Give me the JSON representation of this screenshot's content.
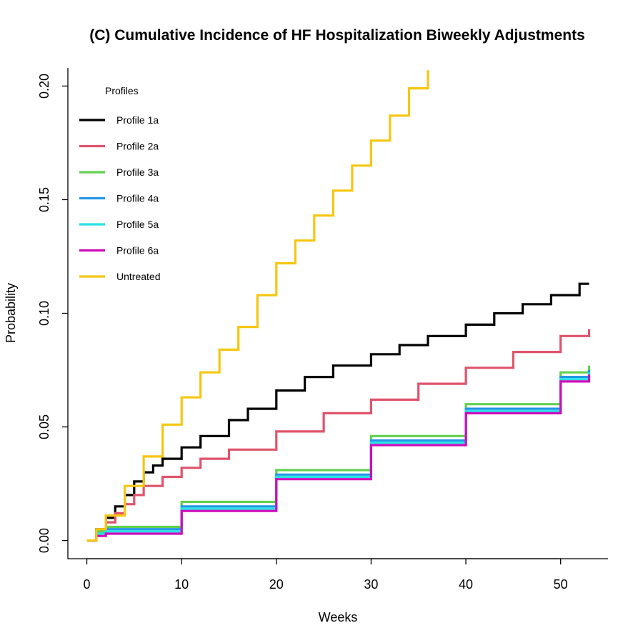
{
  "chart_data": {
    "type": "line",
    "step": true,
    "title": "(C) Cumulative Incidence of HF Hospitalization Biweekly Adjustments",
    "xlabel": "Weeks",
    "ylabel": "Probability",
    "xlim": [
      -2,
      55
    ],
    "ylim": [
      -0.008,
      0.208
    ],
    "xticks": [
      0,
      10,
      20,
      30,
      40,
      50
    ],
    "xtick_labels": [
      "0",
      "10",
      "20",
      "30",
      "40",
      "50"
    ],
    "yticks": [
      0.0,
      0.05,
      0.1,
      0.15,
      0.2
    ],
    "ytick_labels": [
      "0.00",
      "0.05",
      "0.10",
      "0.15",
      "0.20"
    ],
    "grid": false,
    "legend_title": "Profiles",
    "legend_position": "top-left",
    "series": [
      {
        "name": "Profile 1a",
        "color": "#000000",
        "x": [
          0,
          1,
          2,
          3,
          4,
          5,
          6,
          7,
          8,
          10,
          12,
          15,
          17,
          20,
          23,
          26,
          30,
          33,
          36,
          40,
          43,
          46,
          49,
          52,
          53
        ],
        "y": [
          0.0,
          0.005,
          0.01,
          0.015,
          0.02,
          0.026,
          0.03,
          0.033,
          0.036,
          0.041,
          0.046,
          0.053,
          0.058,
          0.066,
          0.072,
          0.077,
          0.082,
          0.086,
          0.09,
          0.095,
          0.1,
          0.104,
          0.108,
          0.113,
          0.113
        ]
      },
      {
        "name": "Profile 2a",
        "color": "#DF536B",
        "x": [
          0,
          1,
          2,
          3,
          4,
          5,
          6,
          8,
          10,
          12,
          15,
          20,
          25,
          30,
          35,
          40,
          45,
          50,
          53
        ],
        "y": [
          0.0,
          0.004,
          0.008,
          0.012,
          0.016,
          0.02,
          0.024,
          0.028,
          0.032,
          0.036,
          0.04,
          0.048,
          0.056,
          0.062,
          0.069,
          0.076,
          0.083,
          0.09,
          0.093
        ]
      },
      {
        "name": "Profile 3a",
        "color": "#61D04F",
        "x": [
          0,
          1,
          2,
          10,
          20,
          30,
          40,
          50,
          53
        ],
        "y": [
          0.0,
          0.004,
          0.006,
          0.017,
          0.031,
          0.046,
          0.06,
          0.074,
          0.077
        ]
      },
      {
        "name": "Profile 4a",
        "color": "#2297E6",
        "x": [
          0,
          1,
          2,
          10,
          20,
          30,
          40,
          50,
          53
        ],
        "y": [
          0.0,
          0.003,
          0.005,
          0.015,
          0.029,
          0.044,
          0.058,
          0.072,
          0.075
        ]
      },
      {
        "name": "Profile 5a",
        "color": "#28E2E5",
        "x": [
          0,
          1,
          2,
          10,
          20,
          30,
          40,
          50,
          53
        ],
        "y": [
          0.0,
          0.003,
          0.004,
          0.014,
          0.028,
          0.043,
          0.057,
          0.071,
          0.074
        ]
      },
      {
        "name": "Profile 6a",
        "color": "#CD0BBC",
        "x": [
          0,
          1,
          2,
          10,
          20,
          30,
          40,
          50,
          53
        ],
        "y": [
          0.0,
          0.002,
          0.003,
          0.013,
          0.027,
          0.042,
          0.056,
          0.07,
          0.073
        ]
      },
      {
        "name": "Untreated",
        "color": "#F5C710",
        "x": [
          0,
          1,
          2,
          4,
          6,
          8,
          10,
          12,
          14,
          16,
          18,
          20,
          22,
          24,
          26,
          28,
          30,
          32,
          34,
          36
        ],
        "y": [
          0.0,
          0.005,
          0.011,
          0.024,
          0.037,
          0.051,
          0.063,
          0.074,
          0.084,
          0.094,
          0.108,
          0.122,
          0.132,
          0.143,
          0.154,
          0.165,
          0.176,
          0.187,
          0.199,
          0.207
        ]
      }
    ]
  }
}
